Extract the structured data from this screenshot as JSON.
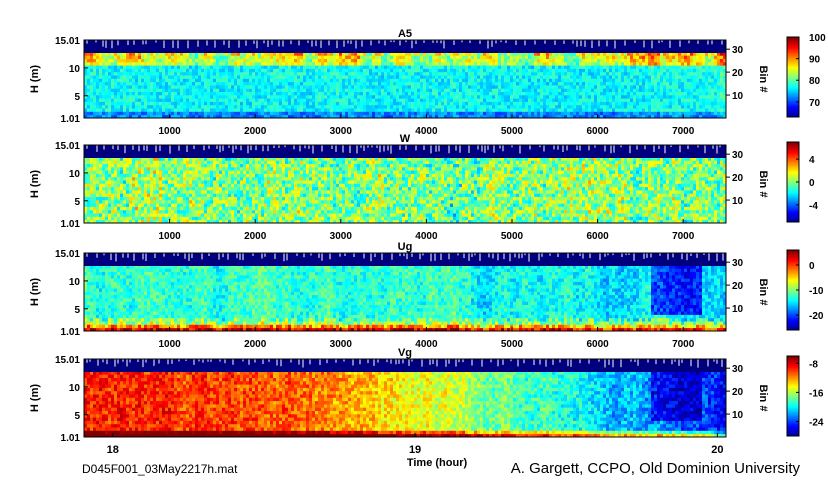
{
  "figure": {
    "file_label": "D045F001_03May2217h.mat",
    "credit": "A. Gargett, CCPO, Old Dominion University",
    "xlabel_bottom": "Time (hour)"
  },
  "colors": {
    "frame": "#000000",
    "mask": "#00007f",
    "jet": [
      "#00008f",
      "#0000ff",
      "#0080ff",
      "#00ffff",
      "#80ff80",
      "#ffff00",
      "#ff8000",
      "#ff0000",
      "#800000"
    ]
  },
  "chart_data": [
    {
      "type": "heatmap",
      "title": "A5",
      "ylabel": "H (m)",
      "ylabel_right": "Bin #",
      "yticks": [
        "1.01",
        "5",
        "10",
        "15.01"
      ],
      "ytick_values": [
        1.01,
        5,
        10,
        15.01
      ],
      "ylim": [
        1.01,
        15.01
      ],
      "bin_ticks": [
        "10",
        "20",
        "30"
      ],
      "bin_tick_values": [
        10,
        20,
        30
      ],
      "xticks": [
        "1000",
        "2000",
        "3000",
        "4000",
        "5000",
        "6000",
        "7000"
      ],
      "xtick_values": [
        1000,
        2000,
        3000,
        4000,
        5000,
        6000,
        7000
      ],
      "xlim": [
        0,
        7500
      ],
      "colorbar_ticks": [
        "70",
        "80",
        "90",
        "100"
      ],
      "colorbar_tick_values": [
        70,
        80,
        90,
        100
      ],
      "clim": [
        63,
        100
      ],
      "mask_above": 13.1,
      "pattern": "amplitude"
    },
    {
      "type": "heatmap",
      "title": "W",
      "ylabel": "H (m)",
      "ylabel_right": "Bin #",
      "yticks": [
        "1.01",
        "5",
        "10",
        "15.01"
      ],
      "ytick_values": [
        1.01,
        5,
        10,
        15.01
      ],
      "ylim": [
        1.01,
        15.01
      ],
      "bin_ticks": [
        "10",
        "20",
        "30"
      ],
      "bin_tick_values": [
        10,
        20,
        30
      ],
      "xticks": [
        "1000",
        "2000",
        "3000",
        "4000",
        "5000",
        "6000",
        "7000"
      ],
      "xtick_values": [
        1000,
        2000,
        3000,
        4000,
        5000,
        6000,
        7000
      ],
      "xlim": [
        0,
        7500
      ],
      "colorbar_ticks": [
        "-4",
        "0",
        "4"
      ],
      "colorbar_tick_values": [
        -4,
        0,
        4
      ],
      "clim": [
        -7,
        7
      ],
      "mask_above": 13.1,
      "pattern": "noise"
    },
    {
      "type": "heatmap",
      "title": "Ug",
      "ylabel": "H (m)",
      "ylabel_right": "Bin #",
      "yticks": [
        "1.01",
        "5",
        "10",
        "15.01"
      ],
      "ytick_values": [
        1.01,
        5,
        10,
        15.01
      ],
      "ylim": [
        1.01,
        15.01
      ],
      "bin_ticks": [
        "10",
        "20",
        "30"
      ],
      "bin_tick_values": [
        10,
        20,
        30
      ],
      "xticks": [
        "1000",
        "2000",
        "3000",
        "4000",
        "5000",
        "6000",
        "7000"
      ],
      "xtick_values": [
        1000,
        2000,
        3000,
        4000,
        5000,
        6000,
        7000
      ],
      "xlim": [
        0,
        7500
      ],
      "colorbar_ticks": [
        "-20",
        "-10",
        "0"
      ],
      "colorbar_tick_values": [
        -20,
        -10,
        0
      ],
      "clim": [
        -26,
        6
      ],
      "mask_above": 13.1,
      "pattern": "ug"
    },
    {
      "type": "heatmap",
      "title": "Vg",
      "ylabel": "H (m)",
      "ylabel_right": "Bin #",
      "yticks": [
        "1.01",
        "5",
        "10",
        "15.01"
      ],
      "ytick_values": [
        1.01,
        5,
        10,
        15.01
      ],
      "ylim": [
        1.01,
        15.01
      ],
      "bin_ticks": [
        "10",
        "20",
        "30"
      ],
      "bin_tick_values": [
        10,
        20,
        30
      ],
      "xticks": [
        "18",
        "19",
        "20"
      ],
      "xtick_values": [
        17.95,
        19.0,
        20.05
      ],
      "xlim": [
        17.85,
        20.08
      ],
      "colorbar_ticks": [
        "-24",
        "-16",
        "-8"
      ],
      "colorbar_tick_values": [
        -24,
        -16,
        -8
      ],
      "clim": [
        -28,
        -6
      ],
      "mask_above": 13.1,
      "pattern": "vg"
    }
  ]
}
